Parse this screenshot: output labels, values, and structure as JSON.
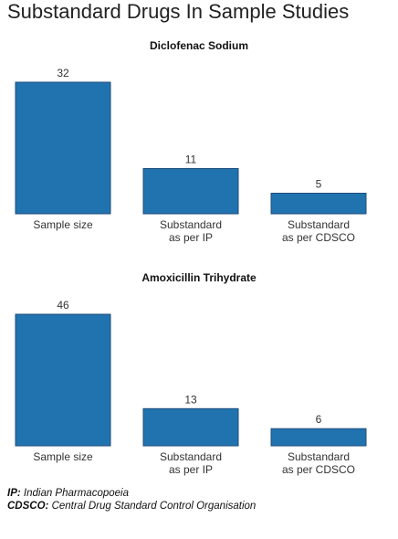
{
  "page": {
    "title": "Substandard Drugs In Sample Studies"
  },
  "chart_data": [
    {
      "type": "bar",
      "title": "Diclofenac Sodium",
      "categories": [
        [
          "Sample size"
        ],
        [
          "Substandard",
          "as per IP"
        ],
        [
          "Substandard",
          "as per CDSCO"
        ]
      ],
      "values": [
        32,
        11,
        5
      ],
      "ylim": [
        0,
        32
      ],
      "bar_color": "#2173b0",
      "grid": false,
      "xlabel": "",
      "ylabel": ""
    },
    {
      "type": "bar",
      "title": "Amoxicillin Trihydrate",
      "categories": [
        [
          "Sample size"
        ],
        [
          "Substandard",
          "as per IP"
        ],
        [
          "Substandard",
          "as per CDSCO"
        ]
      ],
      "values": [
        46,
        13,
        6
      ],
      "ylim": [
        0,
        46
      ],
      "bar_color": "#2173b0",
      "grid": false,
      "xlabel": "",
      "ylabel": ""
    }
  ],
  "footnotes": [
    {
      "term": "IP:",
      "definition": "Indian Pharmacopoeia"
    },
    {
      "term": "CDSCO:",
      "definition": "Central Drug Standard Control Organisation"
    }
  ]
}
